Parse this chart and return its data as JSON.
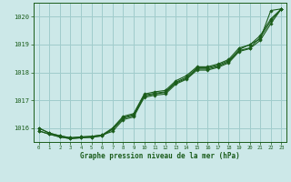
{
  "title": "Graphe pression niveau de la mer (hPa)",
  "bg_color": "#cce8e8",
  "grid_color": "#a0cccc",
  "line_color": "#1a5c1a",
  "text_color": "#1a5c1a",
  "xlim": [
    -0.5,
    23.5
  ],
  "ylim": [
    1015.5,
    1020.5
  ],
  "yticks": [
    1016,
    1017,
    1018,
    1019,
    1020
  ],
  "xticks": [
    0,
    1,
    2,
    3,
    4,
    5,
    6,
    7,
    8,
    9,
    10,
    11,
    12,
    13,
    14,
    15,
    16,
    17,
    18,
    19,
    20,
    21,
    22,
    23
  ],
  "series": [
    [
      1015.9,
      1015.78,
      1015.68,
      1015.62,
      1015.65,
      1015.67,
      1015.72,
      1015.95,
      1016.35,
      1016.45,
      1017.15,
      1017.22,
      1017.28,
      1017.62,
      1017.78,
      1018.12,
      1018.12,
      1018.22,
      1018.38,
      1018.82,
      1019.0,
      1019.2,
      1020.22,
      1020.28
    ],
    [
      1015.9,
      1015.78,
      1015.68,
      1015.62,
      1015.65,
      1015.67,
      1015.72,
      1015.98,
      1016.38,
      1016.48,
      1017.18,
      1017.25,
      1017.3,
      1017.65,
      1017.82,
      1018.16,
      1018.16,
      1018.26,
      1018.42,
      1018.78,
      1018.88,
      1019.25,
      1019.85,
      1020.28
    ],
    [
      1016.0,
      1015.82,
      1015.72,
      1015.65,
      1015.68,
      1015.7,
      1015.75,
      1016.0,
      1016.42,
      1016.52,
      1017.22,
      1017.3,
      1017.35,
      1017.7,
      1017.88,
      1018.2,
      1018.2,
      1018.3,
      1018.46,
      1018.88,
      1018.98,
      1019.32,
      1019.92,
      1020.28
    ],
    [
      1016.0,
      1015.82,
      1015.72,
      1015.65,
      1015.68,
      1015.7,
      1015.75,
      1015.88,
      1016.3,
      1016.4,
      1017.1,
      1017.18,
      1017.22,
      1017.58,
      1017.75,
      1018.08,
      1018.08,
      1018.18,
      1018.34,
      1018.75,
      1018.85,
      1019.15,
      1019.75,
      1020.28
    ]
  ]
}
